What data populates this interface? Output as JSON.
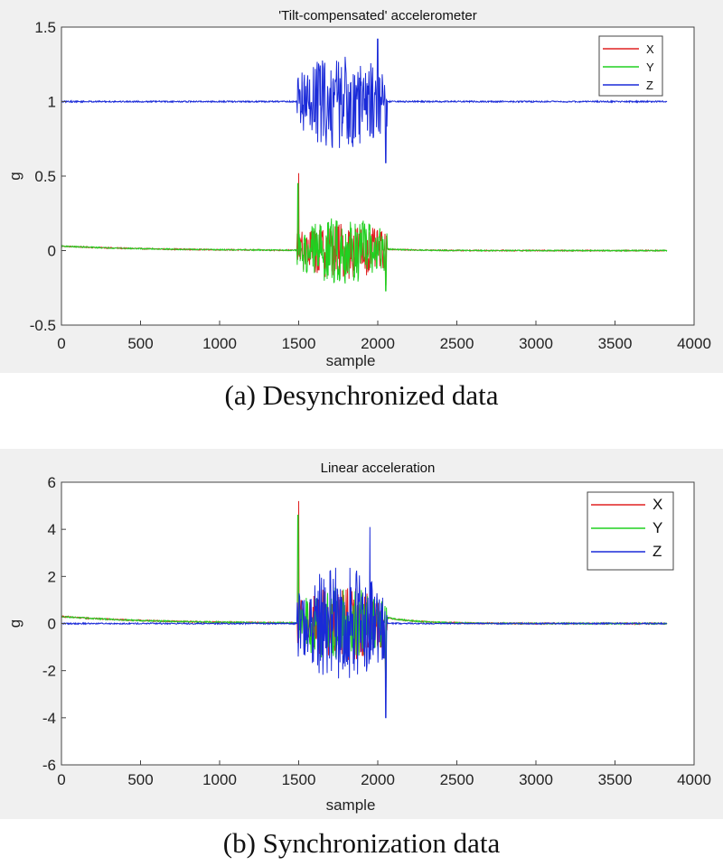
{
  "chart_data": [
    {
      "type": "line",
      "title": "'Tilt-compensated' accelerometer",
      "xlabel": "sample",
      "ylabel": "g",
      "xlim": [
        0,
        4000
      ],
      "ylim": [
        -0.5,
        1.5
      ],
      "xticks": [
        "0",
        "500",
        "1000",
        "1500",
        "2000",
        "2500",
        "3000",
        "3500",
        "4000"
      ],
      "yticks": [
        "-0.5",
        "0",
        "0.5",
        "1",
        "1.5"
      ],
      "legend_position": "top-right",
      "grid": false,
      "series": [
        {
          "name": "X",
          "color": "#e02020",
          "baseline": 0.0,
          "quiet_noise": 0.004,
          "burst": {
            "start": 1490,
            "end": 2060,
            "amplitude": 0.12,
            "peak": 0.52,
            "peak_at": 1500,
            "trough": -0.23
          }
        },
        {
          "name": "Y",
          "color": "#20d020",
          "baseline": 0.0,
          "quiet_noise": 0.004,
          "burst": {
            "start": 1490,
            "end": 2060,
            "amplitude": 0.14,
            "peak": 0.45,
            "peak_at": 1495,
            "trough": -0.27
          }
        },
        {
          "name": "Z",
          "color": "#1a2ad8",
          "baseline": 1.0,
          "quiet_noise": 0.005,
          "burst": {
            "start": 1490,
            "end": 2060,
            "amplitude": 0.2,
            "peak": 1.42,
            "peak_at": 2000,
            "trough": 0.59
          }
        }
      ],
      "caption": "(a) Desynchronized data"
    },
    {
      "type": "line",
      "title": "Linear acceleration",
      "xlabel": "sample",
      "ylabel": "g",
      "xlim": [
        0,
        4000
      ],
      "ylim": [
        -6,
        6
      ],
      "xticks": [
        "0",
        "500",
        "1000",
        "1500",
        "2000",
        "2500",
        "3000",
        "3500",
        "4000"
      ],
      "yticks": [
        "-6",
        "-4",
        "-2",
        "0",
        "2",
        "4",
        "6"
      ],
      "legend_position": "top-right",
      "grid": false,
      "series": [
        {
          "name": "X",
          "color": "#e02020",
          "baseline": 0.0,
          "quiet_noise": 0.03,
          "burst": {
            "start": 1490,
            "end": 2060,
            "amplitude": 1.0,
            "peak": 5.2,
            "peak_at": 1500,
            "trough": -2.3
          }
        },
        {
          "name": "Y",
          "color": "#20d020",
          "baseline": 0.0,
          "quiet_noise": 0.03,
          "burst": {
            "start": 1490,
            "end": 2060,
            "amplitude": 1.0,
            "peak": 4.6,
            "peak_at": 1495,
            "trough": -2.7
          }
        },
        {
          "name": "Z",
          "color": "#1a2ad8",
          "baseline": 0.0,
          "quiet_noise": 0.03,
          "burst": {
            "start": 1490,
            "end": 2060,
            "amplitude": 1.5,
            "peak": 4.1,
            "peak_at": 1950,
            "trough": -4.0
          }
        }
      ],
      "caption": "(b) Synchronization data"
    }
  ]
}
